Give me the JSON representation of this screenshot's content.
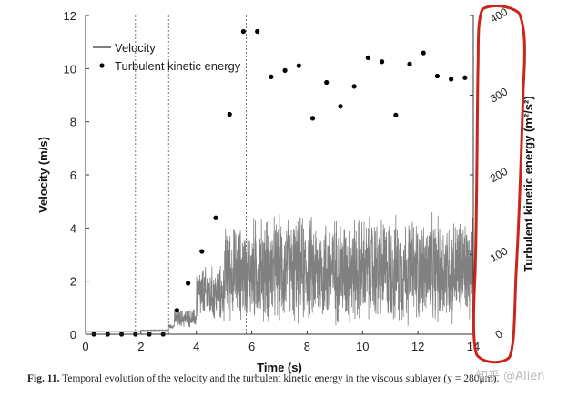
{
  "chart_data": {
    "type": "line+scatter",
    "xlabel": "Time (s)",
    "ylabel_left": "Velocity (m/s)",
    "ylabel_right": "Turbulent kinetic energy (m²/s²)",
    "xlim": [
      0,
      14
    ],
    "ylim_left": [
      0,
      12
    ],
    "ylim_right": [
      0,
      400
    ],
    "x_ticks": [
      "0",
      "2",
      "4",
      "6",
      "8",
      "10",
      "12",
      "14"
    ],
    "y_left_ticks": [
      "0",
      "2",
      "4",
      "6",
      "8",
      "10",
      "12"
    ],
    "y_right_ticks": [
      "0",
      "100",
      "200",
      "300",
      "400"
    ],
    "vertical_markers": [
      1.8,
      3.0,
      5.8
    ],
    "legend": {
      "position": "top-left",
      "entries": [
        "Velocity",
        "Turbulent kinetic energy"
      ]
    },
    "velocity_series": {
      "name": "Velocity",
      "color": "#808080",
      "segments": [
        {
          "t_start": 0.0,
          "t_end": 2.0,
          "mean": 0.1,
          "amp": 0.0
        },
        {
          "t_start": 2.0,
          "t_end": 3.0,
          "mean": 0.15,
          "amp": 0.02
        },
        {
          "t_start": 3.0,
          "t_end": 3.2,
          "mean": 0.3,
          "amp": 0.1
        },
        {
          "t_start": 3.2,
          "t_end": 4.0,
          "mean": 0.6,
          "amp": 0.4
        },
        {
          "t_start": 4.0,
          "t_end": 5.0,
          "mean": 1.5,
          "amp": 1.2
        },
        {
          "t_start": 5.0,
          "t_end": 6.0,
          "mean": 2.3,
          "amp": 2.0
        },
        {
          "t_start": 6.0,
          "t_end": 14.0,
          "mean": 2.4,
          "amp": 2.3
        }
      ]
    },
    "tke_series": {
      "name": "Turbulent kinetic energy",
      "color": "#000000",
      "points": [
        {
          "x": 0.3,
          "y": 0
        },
        {
          "x": 0.8,
          "y": 0
        },
        {
          "x": 1.3,
          "y": 0
        },
        {
          "x": 1.8,
          "y": 0
        },
        {
          "x": 2.3,
          "y": 0
        },
        {
          "x": 2.8,
          "y": 0
        },
        {
          "x": 3.3,
          "y": 30
        },
        {
          "x": 3.7,
          "y": 64
        },
        {
          "x": 4.2,
          "y": 104
        },
        {
          "x": 4.7,
          "y": 146
        },
        {
          "x": 5.2,
          "y": 276
        },
        {
          "x": 5.7,
          "y": 380
        },
        {
          "x": 6.2,
          "y": 380
        },
        {
          "x": 6.7,
          "y": 323
        },
        {
          "x": 7.2,
          "y": 331
        },
        {
          "x": 7.7,
          "y": 337
        },
        {
          "x": 8.2,
          "y": 271
        },
        {
          "x": 8.7,
          "y": 316
        },
        {
          "x": 9.2,
          "y": 286
        },
        {
          "x": 9.7,
          "y": 311
        },
        {
          "x": 10.2,
          "y": 347
        },
        {
          "x": 10.7,
          "y": 342
        },
        {
          "x": 11.2,
          "y": 275
        },
        {
          "x": 11.7,
          "y": 339
        },
        {
          "x": 12.2,
          "y": 353
        },
        {
          "x": 12.7,
          "y": 324
        },
        {
          "x": 13.2,
          "y": 320
        },
        {
          "x": 13.7,
          "y": 322
        }
      ]
    },
    "highlight_annotation": {
      "description": "hand-drawn red outline around right axis",
      "color": "#c8261c"
    }
  },
  "caption": {
    "label": "Fig. 11.",
    "text": "Temporal evolution of the velocity and the turbulent kinetic energy in the viscous sublayer (y = 280μm)."
  },
  "watermark": "知乎 @Alien"
}
